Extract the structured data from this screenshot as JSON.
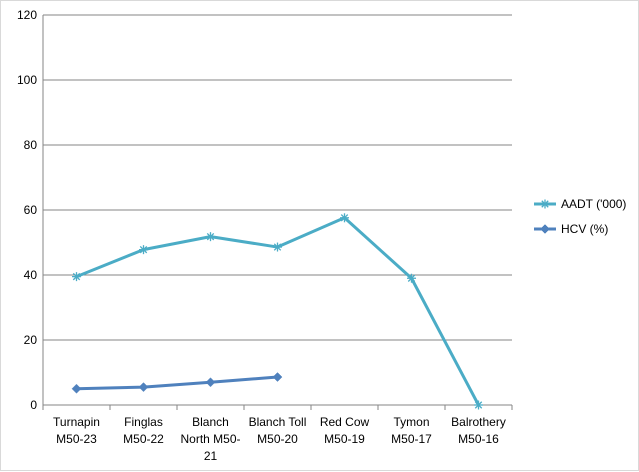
{
  "chart_data": {
    "type": "line",
    "title": "",
    "xlabel": "",
    "ylabel": "",
    "categories": [
      "Turnapin M50-23",
      "Finglas M50-22",
      "Blanch North M50-21",
      "Blanch Toll M50-20",
      "Red Cow M50-19",
      "Tymon M50-17",
      "Balrothery M50-16"
    ],
    "category_label_lines": [
      [
        "Turnapin",
        "M50-23"
      ],
      [
        "Finglas",
        "M50-22"
      ],
      [
        "Blanch",
        "North M50-",
        "21"
      ],
      [
        "Blanch Toll",
        "M50-20"
      ],
      [
        "Red Cow",
        "M50-19"
      ],
      [
        "Tymon",
        "M50-17"
      ],
      [
        "Balrothery",
        "M50-16"
      ]
    ],
    "ylim": [
      0,
      120
    ],
    "yticks": [
      0,
      20,
      40,
      60,
      80,
      100,
      120
    ],
    "grid": true,
    "legend_position": "right",
    "series": [
      {
        "name": "AADT ('000)",
        "values": [
          39.5,
          47.8,
          51.8,
          48.6,
          57.6,
          39.0,
          0
        ],
        "color": "#4bacc6",
        "marker": "star"
      },
      {
        "name": "HCV (%)",
        "values": [
          5.0,
          5.5,
          7.0,
          8.6,
          null,
          null,
          null
        ],
        "color": "#4f81bd",
        "marker": "diamond"
      }
    ]
  }
}
